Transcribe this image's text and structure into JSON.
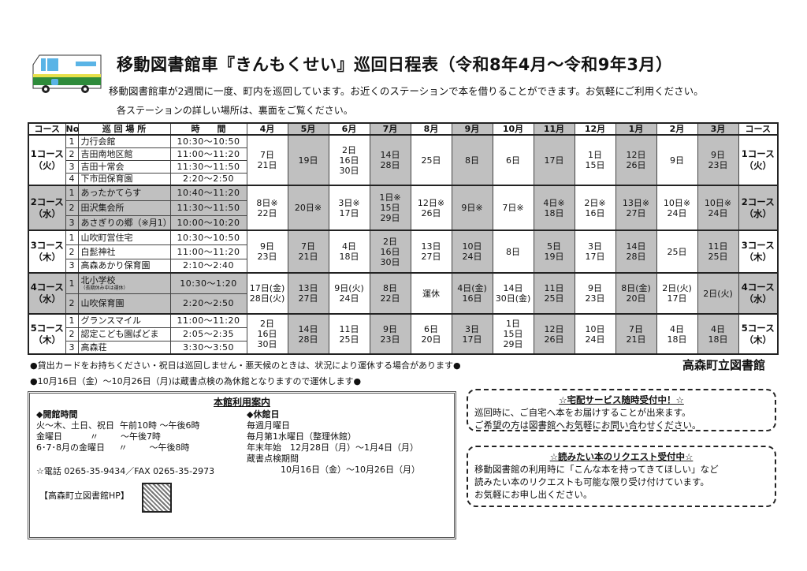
{
  "header": {
    "title": "移動図書館車『きんもくせい』巡回日程表（令和8年4月～令和9年3月）",
    "intro": "移動図書館車が2週間に一度、町内を巡回しています。お近くのステーションで本を借りることができます。お気軽にご利用ください。",
    "intro2": "各ステーションの詳しい場所は、裏面をご覧ください。",
    "bus_icon": "mobile-library-bus-icon",
    "colors": {
      "bus_green": "#2e8b3a",
      "bus_yellow": "#e6e04a",
      "bus_window": "#5ab4e6",
      "shade": "#c0c0c0"
    }
  },
  "table": {
    "headers": {
      "course": "コース",
      "no": "No",
      "place": "巡 回 場 所",
      "time": "時　　間",
      "course_right": "コース"
    },
    "months": [
      "4月",
      "5月",
      "6月",
      "7月",
      "8月",
      "9月",
      "10月",
      "11月",
      "12月",
      "1月",
      "2月",
      "3月"
    ],
    "shaded_months": [
      false,
      true,
      false,
      true,
      false,
      true,
      false,
      true,
      false,
      true,
      false,
      true
    ],
    "courses": [
      {
        "name": "1コース",
        "day": "（火）",
        "shaded": false,
        "stops": [
          {
            "no": "1",
            "place": "力行会館",
            "time": "10:30～10:50"
          },
          {
            "no": "2",
            "place": "吉田南地区館",
            "time": "11:00～11:20"
          },
          {
            "no": "3",
            "place": "吉田十常会",
            "time": "11:30～11:50"
          },
          {
            "no": "4",
            "place": "下市田保育園",
            "time": "2:20～2:50"
          }
        ],
        "dates": [
          "7日\n21日",
          "19日",
          "2日\n16日\n30日",
          "14日\n28日",
          "25日",
          "8日",
          "6日",
          "17日",
          "1日\n15日",
          "12日\n26日",
          "9日",
          "9日\n23日"
        ]
      },
      {
        "name": "2コース",
        "day": "（水）",
        "shaded": true,
        "stops": [
          {
            "no": "1",
            "place": "あったかてらす",
            "time": "10:40～11:20"
          },
          {
            "no": "2",
            "place": "田沢集会所",
            "time": "11:30～11:50"
          },
          {
            "no": "3",
            "place": "あさぎりの郷（※月1）",
            "time": "10:00～10:20"
          }
        ],
        "dates": [
          "8日※\n22日",
          "20日※",
          "3日※\n17日",
          "1日※\n15日\n29日",
          "12日※\n26日",
          "9日※",
          "7日※",
          "4日※\n18日",
          "2日※\n16日",
          "13日※\n27日",
          "10日※\n24日",
          "10日※\n24日"
        ]
      },
      {
        "name": "3コース",
        "day": "（木）",
        "shaded": false,
        "stops": [
          {
            "no": "1",
            "place": "山吹町営住宅",
            "time": "10:30～10:50"
          },
          {
            "no": "2",
            "place": "白髭神社",
            "time": "11:00～11:20"
          },
          {
            "no": "3",
            "place": "高森あかり保育園",
            "time": "2:10～2:40"
          }
        ],
        "dates": [
          "9日\n23日",
          "7日\n21日",
          "4日\n18日",
          "2日\n16日\n30日",
          "13日\n27日",
          "10日\n24日",
          "8日",
          "5日\n19日",
          "3日\n17日",
          "14日\n28日",
          "25日",
          "11日\n25日"
        ]
      },
      {
        "name": "4コース",
        "day": "（水）",
        "shaded": true,
        "stops": [
          {
            "no": "1",
            "place": "北小学校",
            "note": "（長期休み中は運休）",
            "time": "10:30～1:20"
          },
          {
            "no": "2",
            "place": "山吹保育園",
            "time": "2:20～2:50"
          }
        ],
        "dates": [
          "17日(金)\n28日(火)",
          "13日\n27日",
          "9日(火)\n24日",
          "8日\n22日",
          "運休",
          "4日(金)\n16日",
          "14日\n30日(金)",
          "11日\n25日",
          "9日\n23日",
          "8日(金)\n20日",
          "2日(火)\n17日",
          "2日(火)"
        ]
      },
      {
        "name": "5コース",
        "day": "（木）",
        "shaded": false,
        "stops": [
          {
            "no": "1",
            "place": "グランスマイル",
            "time": "11:00～11:20"
          },
          {
            "no": "2",
            "place": "認定こども園ぱどま",
            "time": "2:05～2:35"
          },
          {
            "no": "3",
            "place": "高森荘",
            "time": "3:30～3:50"
          }
        ],
        "dates": [
          "2日\n16日\n30日",
          "14日\n28日",
          "11日\n25日",
          "9日\n23日",
          "6日\n20日",
          "3日\n17日",
          "1日\n15日\n29日",
          "12日\n26日",
          "10日\n24日",
          "7日\n21日",
          "4日\n18日",
          "4日\n18日"
        ]
      }
    ]
  },
  "notes": {
    "note1": "●貸出カードをお持ちください・祝日は巡回しません・悪天候のときは、状況により運休する場合があります●",
    "note2": "●10月16日（金）～10月26日（月)は蔵書点検の為休館となりますので運休します●",
    "library_name": "高森町立図書館"
  },
  "info": {
    "title": "本館利用案内",
    "hours_heading": "◆開館時間",
    "hours": [
      "火～木、土日、祝日  午前10時 ～午後6時",
      "金曜日          〃        ～午後7時",
      "6･7･8月の金曜日     〃        ～午後8時"
    ],
    "closed_heading": "◆休館日",
    "closed": [
      "毎週月曜日",
      "毎月第1水曜日（整理休館）",
      "年末年始　12月28日（月）～1月4日（月）",
      "蔵書点検期間",
      "10月16日（金）～10月26日（月）"
    ],
    "contact": "☆電話 0265-35-9434／FAX 0265-35-2973",
    "hp_label": "【高森町立図書館HP】"
  },
  "delivery": {
    "title": "☆宅配サービス随時受付中！☆",
    "lines": [
      "巡回時に、ご自宅へ本をお届けすることが出来ます。",
      "ご希望の方は図書館へお気軽にお問い合わせください。"
    ]
  },
  "request": {
    "title": "☆読みたい本のリクエスト受付中☆",
    "lines": [
      "移動図書館の利用時に「こんな本を持ってきてほしい」など",
      "読みたい本のリクエストも可能な限り受け付けています。",
      "お気軽にお申し出ください。"
    ]
  }
}
